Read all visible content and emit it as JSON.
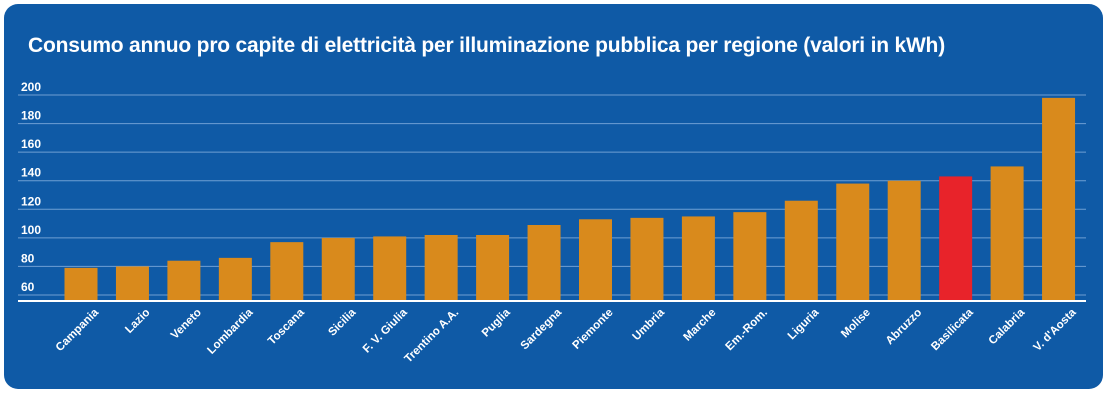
{
  "chart_data": {
    "type": "bar",
    "title": "Consumo annuo pro capite di elettricità per illuminazione pubblica per regione (valori in kWh)",
    "categories": [
      "Campania",
      "Lazio",
      "Veneto",
      "Lombardia",
      "Toscana",
      "Sicilia",
      "F. V. Giulia",
      "Trentino A.A.",
      "Puglia",
      "Sardegna",
      "Piemonte",
      "Umbria",
      "Marche",
      "Em.-Rom.",
      "Liguria",
      "Molise",
      "Abruzzo",
      "Basilicata",
      "Calabria",
      "V. d'Aosta"
    ],
    "values": [
      79,
      80,
      84,
      86,
      97,
      100,
      101,
      102,
      102,
      109,
      113,
      114,
      115,
      118,
      126,
      138,
      140,
      143,
      150,
      198
    ],
    "highlight": "Basilicata",
    "yticks": [
      60,
      80,
      100,
      120,
      140,
      160,
      180,
      200
    ],
    "ylim": [
      60,
      200
    ],
    "grid": true,
    "xlabel": "",
    "ylabel": "",
    "colors": {
      "background": "#0f5aa6",
      "bar": "#d98a1c",
      "highlight": "#e8232a",
      "text": "#ffffff",
      "grid": "#6f9fd3"
    }
  }
}
